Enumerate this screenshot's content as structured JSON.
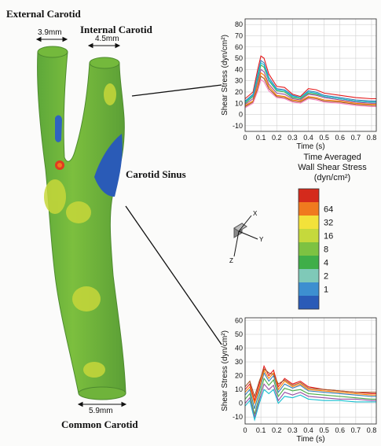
{
  "labels": {
    "external_carotid": "External Carotid",
    "internal_carotid": "Internal Carotid",
    "carotid_sinus": "Carotid Sinus",
    "common_carotid": "Common Carotid"
  },
  "dimensions": {
    "external": "3.9mm",
    "internal": "4.5mm",
    "common": "5.9mm"
  },
  "colorbar": {
    "title_line1": "Time Averaged",
    "title_line2": "Wall Shear Stress",
    "title_line3": "(dyn/cm²)",
    "ticks": [
      "64",
      "32",
      "16",
      "8",
      "4",
      "2",
      "1"
    ],
    "colors": [
      "#d42a1c",
      "#f07a1e",
      "#f3e23a",
      "#c5d93c",
      "#7dc242",
      "#3fae49",
      "#7fc9b8",
      "#3d8fd0",
      "#2a5bb7"
    ]
  },
  "axes_triad": {
    "x": "X",
    "y": "Y",
    "z": "Z"
  },
  "chart_data": [
    {
      "type": "line",
      "xlabel": "Time (s)",
      "ylabel": "Shear Stress (dyn/cm²)",
      "xticks": [
        "0",
        "0.1",
        "0.2",
        "0.3",
        "0.4",
        "0.5",
        "0.6",
        "0.7",
        "0.8"
      ],
      "yticks": [
        "-10",
        "0",
        "10",
        "20",
        "30",
        "40",
        "50",
        "60",
        "70",
        "80"
      ],
      "xlim": [
        0,
        0.83
      ],
      "ylim": [
        -15,
        85
      ],
      "grid": true,
      "series": [
        {
          "color": "#e41a1c",
          "x": [
            0,
            0.05,
            0.08,
            0.1,
            0.12,
            0.15,
            0.2,
            0.25,
            0.3,
            0.35,
            0.4,
            0.45,
            0.5,
            0.6,
            0.7,
            0.8,
            0.83
          ],
          "y": [
            14,
            20,
            40,
            52,
            50,
            36,
            25,
            24,
            18,
            16,
            23,
            22,
            19,
            17,
            15,
            14,
            14
          ]
        },
        {
          "color": "#377eb8",
          "x": [
            0,
            0.05,
            0.08,
            0.1,
            0.12,
            0.15,
            0.2,
            0.25,
            0.3,
            0.35,
            0.4,
            0.45,
            0.5,
            0.6,
            0.7,
            0.8,
            0.83
          ],
          "y": [
            12,
            18,
            36,
            48,
            46,
            33,
            23,
            22,
            17,
            15,
            21,
            20,
            17,
            15,
            13,
            12,
            12
          ]
        },
        {
          "color": "#4daf4a",
          "x": [
            0,
            0.05,
            0.08,
            0.1,
            0.12,
            0.15,
            0.2,
            0.25,
            0.3,
            0.35,
            0.4,
            0.45,
            0.5,
            0.6,
            0.7,
            0.8,
            0.83
          ],
          "y": [
            10,
            16,
            32,
            44,
            42,
            30,
            21,
            20,
            15,
            14,
            19,
            18,
            16,
            14,
            12,
            11,
            11
          ]
        },
        {
          "color": "#984ea3",
          "x": [
            0,
            0.05,
            0.08,
            0.1,
            0.12,
            0.15,
            0.2,
            0.25,
            0.3,
            0.35,
            0.4,
            0.45,
            0.5,
            0.6,
            0.7,
            0.8,
            0.83
          ],
          "y": [
            9,
            14,
            29,
            40,
            38,
            27,
            19,
            18,
            14,
            13,
            18,
            17,
            15,
            13,
            11,
            10,
            10
          ]
        },
        {
          "color": "#ff7f00",
          "x": [
            0,
            0.05,
            0.08,
            0.1,
            0.12,
            0.15,
            0.2,
            0.25,
            0.3,
            0.35,
            0.4,
            0.45,
            0.5,
            0.6,
            0.7,
            0.8,
            0.83
          ],
          "y": [
            8,
            12,
            26,
            37,
            35,
            25,
            17,
            16,
            13,
            12,
            16,
            15,
            13,
            12,
            10,
            9,
            9
          ]
        },
        {
          "color": "#a65628",
          "x": [
            0,
            0.05,
            0.08,
            0.1,
            0.12,
            0.15,
            0.2,
            0.25,
            0.3,
            0.35,
            0.4,
            0.45,
            0.5,
            0.6,
            0.7,
            0.8,
            0.83
          ],
          "y": [
            7,
            11,
            23,
            34,
            32,
            23,
            16,
            15,
            12,
            11,
            15,
            14,
            12,
            11,
            9,
            8,
            8
          ]
        },
        {
          "color": "#f781bf",
          "x": [
            0,
            0.05,
            0.08,
            0.1,
            0.12,
            0.15,
            0.2,
            0.25,
            0.3,
            0.35,
            0.4,
            0.45,
            0.5,
            0.6,
            0.7,
            0.8,
            0.83
          ],
          "y": [
            6,
            10,
            21,
            31,
            29,
            21,
            15,
            14,
            11,
            10,
            14,
            13,
            11,
            10,
            8,
            7,
            7
          ]
        },
        {
          "color": "#17becf",
          "x": [
            0,
            0.05,
            0.08,
            0.1,
            0.12,
            0.15,
            0.2,
            0.25,
            0.3,
            0.35,
            0.4,
            0.45,
            0.5,
            0.6,
            0.7,
            0.8,
            0.83
          ],
          "y": [
            11,
            17,
            34,
            46,
            44,
            31,
            22,
            21,
            16,
            15,
            20,
            19,
            16,
            14,
            12,
            11,
            11
          ]
        }
      ]
    },
    {
      "type": "line",
      "xlabel": "Time (s)",
      "ylabel": "Shear Stress (dyn/cm²)",
      "xticks": [
        "0",
        "0.1",
        "0.2",
        "0.3",
        "0.4",
        "0.5",
        "0.6",
        "0.7",
        "0.8"
      ],
      "yticks": [
        "-10",
        "0",
        "10",
        "20",
        "30",
        "40",
        "50",
        "60"
      ],
      "xlim": [
        0,
        0.83
      ],
      "ylim": [
        -15,
        62
      ],
      "grid": true,
      "series": [
        {
          "color": "#e41a1c",
          "x": [
            0,
            0.03,
            0.06,
            0.09,
            0.12,
            0.15,
            0.18,
            0.21,
            0.25,
            0.3,
            0.35,
            0.4,
            0.5,
            0.6,
            0.7,
            0.8,
            0.83
          ],
          "y": [
            10,
            14,
            2,
            14,
            27,
            20,
            24,
            12,
            18,
            14,
            16,
            12,
            10,
            9,
            8,
            7,
            7
          ]
        },
        {
          "color": "#377eb8",
          "x": [
            0,
            0.03,
            0.06,
            0.09,
            0.12,
            0.15,
            0.18,
            0.21,
            0.25,
            0.3,
            0.35,
            0.4,
            0.5,
            0.6,
            0.7,
            0.8,
            0.83
          ],
          "y": [
            6,
            10,
            -4,
            9,
            22,
            16,
            20,
            8,
            14,
            11,
            13,
            9,
            8,
            7,
            6,
            5,
            5
          ]
        },
        {
          "color": "#4daf4a",
          "x": [
            0,
            0.03,
            0.06,
            0.09,
            0.12,
            0.15,
            0.18,
            0.21,
            0.25,
            0.3,
            0.35,
            0.4,
            0.5,
            0.6,
            0.7,
            0.8,
            0.83
          ],
          "y": [
            3,
            7,
            -8,
            5,
            18,
            13,
            17,
            5,
            11,
            9,
            10,
            7,
            6,
            5,
            4,
            3,
            3
          ]
        },
        {
          "color": "#984ea3",
          "x": [
            0,
            0.03,
            0.06,
            0.09,
            0.12,
            0.15,
            0.18,
            0.21,
            0.25,
            0.3,
            0.35,
            0.4,
            0.5,
            0.6,
            0.7,
            0.8,
            0.83
          ],
          "y": [
            0,
            4,
            -10,
            2,
            14,
            10,
            13,
            2,
            8,
            6,
            8,
            5,
            4,
            3,
            3,
            2,
            2
          ]
        },
        {
          "color": "#ff7f00",
          "x": [
            0,
            0.03,
            0.06,
            0.09,
            0.12,
            0.15,
            0.18,
            0.21,
            0.25,
            0.3,
            0.35,
            0.4,
            0.5,
            0.6,
            0.7,
            0.8,
            0.83
          ],
          "y": [
            8,
            12,
            0,
            11,
            24,
            18,
            22,
            10,
            16,
            12,
            14,
            10,
            9,
            8,
            7,
            6,
            6
          ]
        },
        {
          "color": "#17becf",
          "x": [
            0,
            0.03,
            0.06,
            0.09,
            0.12,
            0.15,
            0.18,
            0.21,
            0.25,
            0.3,
            0.35,
            0.4,
            0.5,
            0.6,
            0.7,
            0.8,
            0.83
          ],
          "y": [
            -2,
            2,
            -12,
            0,
            10,
            7,
            10,
            0,
            5,
            4,
            6,
            3,
            2,
            2,
            1,
            1,
            1
          ]
        },
        {
          "color": "#a65628",
          "x": [
            0,
            0.03,
            0.06,
            0.09,
            0.12,
            0.15,
            0.18,
            0.21,
            0.25,
            0.3,
            0.35,
            0.4,
            0.5,
            0.6,
            0.7,
            0.8,
            0.83
          ],
          "y": [
            12,
            16,
            5,
            16,
            25,
            22,
            21,
            14,
            17,
            13,
            15,
            11,
            10,
            9,
            8,
            8,
            8
          ]
        }
      ]
    }
  ]
}
